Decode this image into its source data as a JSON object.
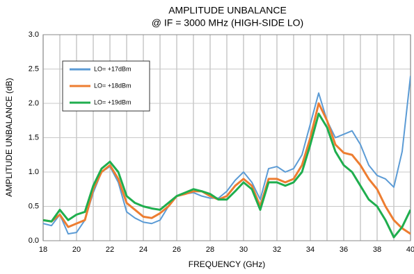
{
  "chart_data": {
    "type": "line",
    "title": "AMPLITUDE UNBALANCE",
    "subtitle": "@ IF = 3000 MHz (HIGH-SIDE LO)",
    "x_label": "FREQUENCY (GHz)",
    "y_label": "AMPLITUDE UNBALANCE (dB)",
    "x": [
      18,
      18.5,
      19,
      19.5,
      20,
      20.5,
      21,
      21.5,
      22,
      22.5,
      23,
      23.5,
      24,
      24.5,
      25,
      25.5,
      26,
      26.5,
      27,
      27.5,
      28,
      28.5,
      29,
      29.5,
      30,
      30.5,
      31,
      31.5,
      32,
      32.5,
      33,
      33.5,
      34,
      34.5,
      35,
      35.5,
      36,
      36.5,
      37,
      37.5,
      38,
      38.5,
      39,
      39.5,
      40
    ],
    "series": [
      {
        "name": "LO= +17dBm",
        "color": "#5b9bd5",
        "values": [
          0.25,
          0.22,
          0.38,
          0.1,
          0.12,
          0.3,
          0.7,
          1.0,
          1.08,
          0.85,
          0.42,
          0.33,
          0.27,
          0.25,
          0.3,
          0.5,
          0.65,
          0.68,
          0.7,
          0.65,
          0.62,
          0.62,
          0.72,
          0.88,
          1.0,
          0.85,
          0.6,
          1.05,
          1.08,
          1.0,
          1.05,
          1.25,
          1.7,
          2.15,
          1.75,
          1.5,
          1.55,
          1.6,
          1.4,
          1.1,
          0.95,
          0.9,
          0.78,
          1.3,
          2.4
        ]
      },
      {
        "name": "LO= +18dBm",
        "color": "#ed7d31",
        "values": [
          0.3,
          0.28,
          0.38,
          0.2,
          0.25,
          0.3,
          0.75,
          1.0,
          1.1,
          0.9,
          0.55,
          0.45,
          0.35,
          0.33,
          0.4,
          0.5,
          0.65,
          0.68,
          0.72,
          0.72,
          0.65,
          0.6,
          0.65,
          0.8,
          0.9,
          0.8,
          0.5,
          0.9,
          0.9,
          0.85,
          0.9,
          1.1,
          1.5,
          2.0,
          1.75,
          1.4,
          1.28,
          1.25,
          1.1,
          0.9,
          0.75,
          0.5,
          0.3,
          0.18,
          0.1
        ]
      },
      {
        "name": "LO= +19dBm",
        "color": "#1fae4e",
        "values": [
          0.3,
          0.28,
          0.45,
          0.3,
          0.38,
          0.42,
          0.8,
          1.05,
          1.15,
          1.0,
          0.65,
          0.55,
          0.5,
          0.47,
          0.45,
          0.55,
          0.65,
          0.7,
          0.75,
          0.72,
          0.68,
          0.6,
          0.6,
          0.72,
          0.85,
          0.75,
          0.45,
          0.85,
          0.85,
          0.8,
          0.85,
          1.0,
          1.4,
          1.85,
          1.65,
          1.3,
          1.1,
          1.0,
          0.8,
          0.6,
          0.5,
          0.3,
          0.05,
          0.2,
          0.45
        ]
      }
    ],
    "xlim": [
      18,
      40
    ],
    "xticks": [
      18,
      20,
      22,
      24,
      26,
      28,
      30,
      32,
      34,
      36,
      38,
      40
    ],
    "xgrid": [
      18,
      19,
      20,
      21,
      22,
      23,
      24,
      25,
      26,
      27,
      28,
      29,
      30,
      31,
      32,
      33,
      34,
      35,
      36,
      37,
      38,
      39,
      40
    ],
    "ylim": [
      0,
      3
    ],
    "yticks": [
      {
        "value": 0,
        "label": "0.0"
      },
      0.5,
      {
        "value": 1,
        "label": "1.0"
      },
      1.5,
      {
        "value": 2,
        "label": "2.0"
      },
      2.5,
      {
        "value": 3,
        "label": "3.0"
      }
    ],
    "grid": true,
    "legend": "upper-left"
  }
}
